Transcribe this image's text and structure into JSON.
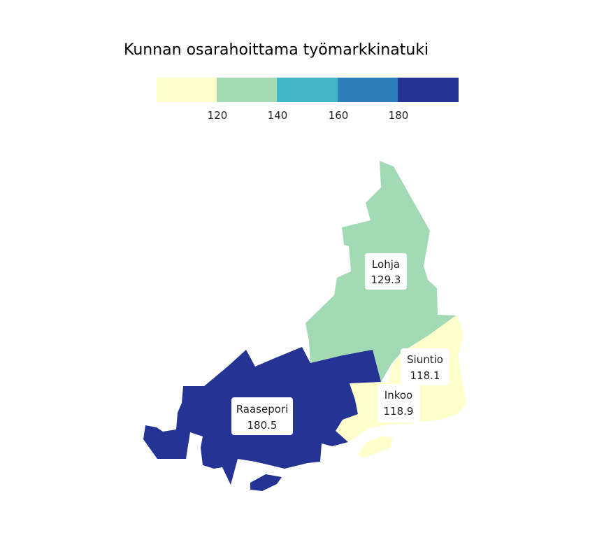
{
  "title": "Kunnan osarahoittama työmarkkinatuki",
  "legend": {
    "colors": [
      "#ffffcc",
      "#a1dab4",
      "#41b6c4",
      "#2c7fb8",
      "#253494"
    ],
    "ticks": [
      "120",
      "140",
      "160",
      "180"
    ]
  },
  "regions": [
    {
      "name": "Lohja",
      "value": "129.3",
      "color": "#a1dab4"
    },
    {
      "name": "Raasepori",
      "value": "180.5",
      "color": "#253494"
    },
    {
      "name": "Inkoo",
      "value": "118.9",
      "color": "#ffffcc"
    },
    {
      "name": "Siuntio",
      "value": "118.1",
      "color": "#ffffcc"
    }
  ]
}
